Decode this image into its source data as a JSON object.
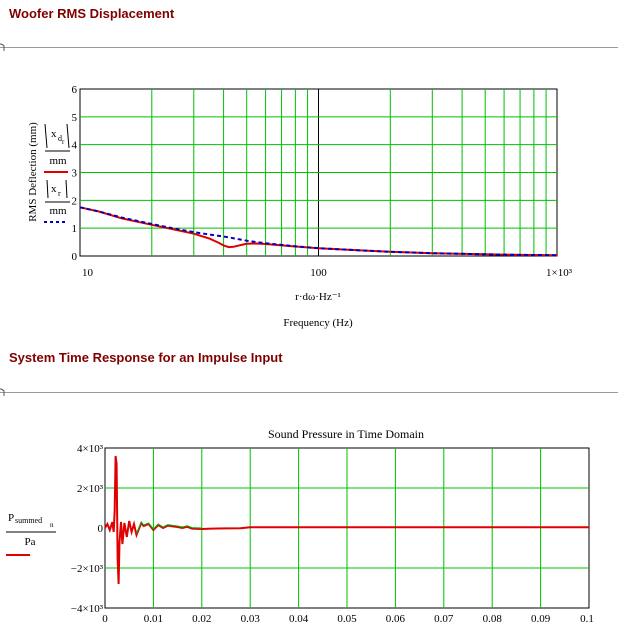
{
  "worksheet": {
    "section1_title": "Woofer RMS Displacement",
    "section2_title": "System Time Response for an Impulse Input"
  },
  "chart_data": [
    {
      "type": "line",
      "xscale": "log",
      "xlim": [
        10,
        1000
      ],
      "ylim": [
        0,
        6
      ],
      "grid": true,
      "ylabel": "RMS Deflection (mm)",
      "xlabel": "r·dω·Hz⁻¹",
      "xlabel2": "Frequency (Hz)",
      "x_ticks": [
        "10",
        "100",
        "1×10³"
      ],
      "y_ticks": [
        "0",
        "1",
        "2",
        "3",
        "4",
        "5",
        "6"
      ],
      "legend": [
        {
          "numerator": "|x_d_r|",
          "denominator": "mm",
          "style": "solid",
          "color": "#e00000"
        },
        {
          "numerator": "|x_r|",
          "denominator": "mm",
          "style": "dashed",
          "color": "#0000c0"
        }
      ],
      "series": [
        {
          "numerator": "|x_d_r|",
          "color": "#e00000",
          "style": "solid",
          "x": [
            10,
            12,
            15,
            20,
            25,
            30,
            35,
            38,
            40,
            42,
            44,
            46,
            48,
            50,
            55,
            60,
            70,
            80,
            100,
            150,
            200,
            300,
            500,
            700,
            1000
          ],
          "y": [
            1.75,
            1.6,
            1.35,
            1.12,
            0.95,
            0.8,
            0.62,
            0.48,
            0.38,
            0.32,
            0.33,
            0.37,
            0.41,
            0.44,
            0.45,
            0.43,
            0.38,
            0.34,
            0.28,
            0.2,
            0.15,
            0.1,
            0.06,
            0.04,
            0.03
          ]
        },
        {
          "numerator": "|x_r|",
          "color": "#0000c0",
          "style": "dashed",
          "x": [
            10,
            12,
            15,
            20,
            25,
            30,
            35,
            40,
            45,
            50,
            55,
            60,
            70,
            80,
            100,
            150,
            200,
            300,
            500,
            700,
            1000
          ],
          "y": [
            1.75,
            1.6,
            1.38,
            1.15,
            0.98,
            0.86,
            0.77,
            0.7,
            0.62,
            0.55,
            0.5,
            0.46,
            0.4,
            0.35,
            0.28,
            0.2,
            0.15,
            0.1,
            0.06,
            0.04,
            0.03
          ]
        }
      ]
    },
    {
      "type": "line",
      "title": "Sound Pressure in Time Domain",
      "xlim": [
        0,
        0.1
      ],
      "ylim": [
        -4000,
        4000
      ],
      "grid": true,
      "x_ticks": [
        "0",
        "0.01",
        "0.02",
        "0.03",
        "0.04",
        "0.05",
        "0.06",
        "0.07",
        "0.08",
        "0.09",
        "0.1"
      ],
      "y_ticks": [
        "4×10³",
        "2×10³",
        "0",
        "−2×10³",
        "−4×10³"
      ],
      "legend": [
        {
          "numerator": "P_summed_n",
          "denominator": "Pa",
          "style": "solid",
          "color": "#e00000"
        }
      ],
      "series": [
        {
          "numerator": "P_summed_n",
          "color": "#e00000",
          "style": "solid",
          "secondary_color": "#00b000",
          "x": [
            0,
            0.0005,
            0.001,
            0.0015,
            0.0018,
            0.002,
            0.0022,
            0.0024,
            0.0026,
            0.0028,
            0.003,
            0.0033,
            0.0036,
            0.004,
            0.0045,
            0.005,
            0.0055,
            0.006,
            0.0065,
            0.007,
            0.0075,
            0.008,
            0.009,
            0.01,
            0.011,
            0.012,
            0.013,
            0.014,
            0.015,
            0.016,
            0.017,
            0.018,
            0.02,
            0.022,
            0.025,
            0.028,
            0.03,
            0.04,
            0.05,
            0.06,
            0.07,
            0.08,
            0.09,
            0.1
          ],
          "y": [
            0,
            200,
            -100,
            300,
            -200,
            900,
            3600,
            3200,
            -1500,
            -2800,
            -700,
            300,
            -800,
            250,
            -450,
            350,
            -200,
            200,
            -350,
            -50,
            250,
            100,
            200,
            -100,
            150,
            0,
            120,
            80,
            50,
            0,
            60,
            -30,
            -50,
            -30,
            -20,
            -10,
            40,
            40,
            40,
            40,
            40,
            40,
            40,
            40
          ]
        }
      ]
    }
  ]
}
